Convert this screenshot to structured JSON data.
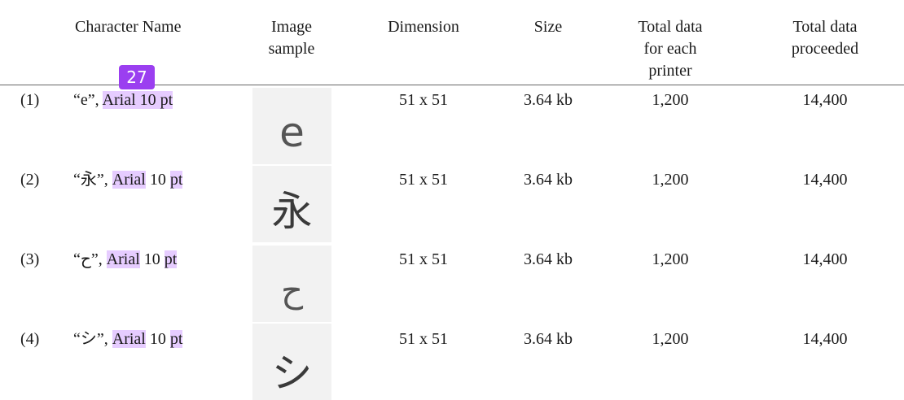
{
  "headers": {
    "character_name": "Character Name",
    "image_sample": [
      "Image",
      "sample"
    ],
    "dimension": "Dimension",
    "size": "Size",
    "total_each": [
      "Total data",
      "for each",
      "printer"
    ],
    "total_proceeded": [
      "Total data",
      "proceeded"
    ]
  },
  "badge": "27",
  "rows": [
    {
      "num": "(1)",
      "char": "“e”, ",
      "font": "Arial",
      "pt_size": "10",
      "unit": "pt",
      "glyph": "e",
      "dimension": "51 x 51",
      "size": "3.64 kb",
      "total_each": "1,200",
      "total_proceeded": "14,400"
    },
    {
      "num": "(2)",
      "char": "“永”, ",
      "font": "Arial",
      "pt_size": "10",
      "unit": "pt",
      "glyph": "永",
      "dimension": "51 x 51",
      "size": "3.64 kb",
      "total_each": "1,200",
      "total_proceeded": "14,400"
    },
    {
      "num": "(3)",
      "char": "“ح”, ",
      "font": "Arial",
      "pt_size": "10",
      "unit": "pt",
      "glyph": "ح",
      "dimension": "51 x 51",
      "size": "3.64 kb",
      "total_each": "1,200",
      "total_proceeded": "14,400"
    },
    {
      "num": "(4)",
      "char": "“シ”, ",
      "font": "Arial",
      "pt_size": "10",
      "unit": "pt",
      "glyph": "シ",
      "dimension": "51 x 51",
      "size": "3.64 kb",
      "total_each": "1,200",
      "total_proceeded": "14,400"
    }
  ]
}
